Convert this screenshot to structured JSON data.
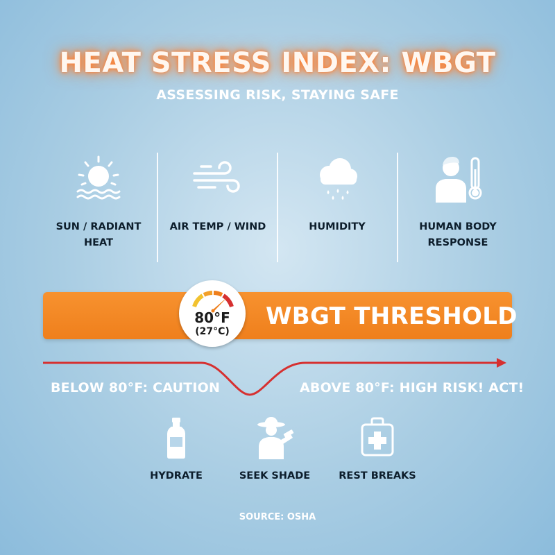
{
  "title": "HEAT STRESS INDEX: WBGT",
  "subtitle": "ASSESSING RISK, STAYING SAFE",
  "factors": [
    {
      "icon": "sun-radiant-icon",
      "label_line1": "SUN / RADIANT",
      "label_line2": "HEAT"
    },
    {
      "icon": "wind-icon",
      "label_line1": "AIR TEMP / WIND",
      "label_line2": ""
    },
    {
      "icon": "rain-cloud-icon",
      "label_line1": "HUMIDITY",
      "label_line2": ""
    },
    {
      "icon": "person-thermometer-icon",
      "label_line1": "HUMAN BODY",
      "label_line2": "RESPONSE"
    }
  ],
  "threshold": {
    "label": "WBGT THRESHOLD",
    "value_f": "80°F",
    "value_c": "(27°C)"
  },
  "zones": {
    "below": "BELOW 80°F: CAUTION",
    "above": "ABOVE 80°F: HIGH RISK! ACT!"
  },
  "actions": [
    {
      "icon": "water-bottle-icon",
      "label": "HYDRATE"
    },
    {
      "icon": "worker-shade-icon",
      "label": "SEEK SHADE"
    },
    {
      "icon": "first-aid-kit-icon",
      "label": "REST BREAKS"
    }
  ],
  "source": "SOURCE: OSHA",
  "colors": {
    "accent_orange": "#ef7f1c",
    "arrow_red": "#d63030",
    "title_glow": "#ff7a2a",
    "label_dark": "#0d1e2c"
  }
}
